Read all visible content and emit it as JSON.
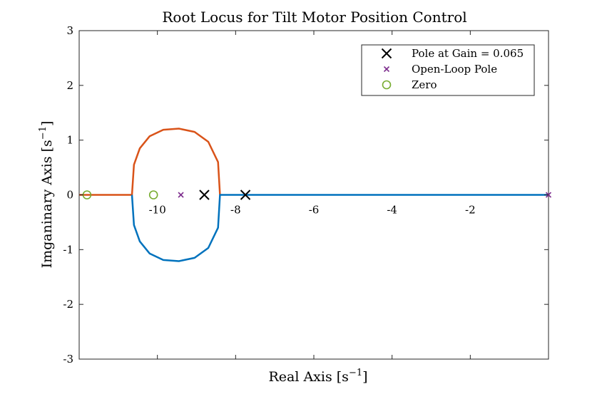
{
  "chart_data": {
    "type": "line",
    "title": "Root Locus for Tilt Motor Position Control",
    "xlabel": "Real Axis [s",
    "ylabel": "Imganinary Axis [s",
    "label_superscript": "−1",
    "xlim": [
      -12,
      0
    ],
    "ylim": [
      -3,
      3
    ],
    "xticks": [
      -10,
      -8,
      -6,
      -4,
      -2
    ],
    "xtick_labels": [
      "-10",
      "-8",
      "-6",
      "-4",
      "-2"
    ],
    "yticks": [
      3,
      2,
      1,
      0,
      -1,
      -2,
      -3
    ],
    "ytick_labels": [
      "3",
      "2",
      "1",
      "0",
      "-1",
      "-2",
      "-3"
    ],
    "grid": false,
    "legend_position": "top-right",
    "branches": [
      {
        "color": "#D95319",
        "points": [
          [
            -12,
            0
          ],
          [
            -10.65,
            0
          ],
          [
            -10.6,
            0.55
          ],
          [
            -10.45,
            0.85
          ],
          [
            -10.2,
            1.07
          ],
          [
            -9.85,
            1.19
          ],
          [
            -9.45,
            1.21
          ],
          [
            -9.05,
            1.15
          ],
          [
            -8.7,
            0.97
          ],
          [
            -8.45,
            0.6
          ],
          [
            -8.4,
            0
          ]
        ]
      },
      {
        "color": "#0072BD",
        "points": [
          [
            -10.65,
            0
          ],
          [
            -10.6,
            -0.55
          ],
          [
            -10.45,
            -0.85
          ],
          [
            -10.2,
            -1.07
          ],
          [
            -9.85,
            -1.19
          ],
          [
            -9.45,
            -1.21
          ],
          [
            -9.05,
            -1.15
          ],
          [
            -8.7,
            -0.97
          ],
          [
            -8.45,
            -0.6
          ],
          [
            -8.4,
            0
          ],
          [
            0,
            0
          ]
        ]
      }
    ],
    "series": [
      {
        "name": "Pole at Gain = 0.065",
        "marker": "x-large",
        "color": "#000000",
        "points": [
          [
            -8.8,
            0
          ],
          [
            -7.75,
            0
          ]
        ]
      },
      {
        "name": "Open-Loop Pole",
        "marker": "x-small",
        "color": "#7E2F8E",
        "points": [
          [
            -9.4,
            0
          ],
          [
            0,
            0
          ]
        ]
      },
      {
        "name": "Zero",
        "marker": "circle",
        "color": "#77AC30",
        "points": [
          [
            -11.8,
            0
          ],
          [
            -10.1,
            0
          ]
        ]
      }
    ]
  }
}
